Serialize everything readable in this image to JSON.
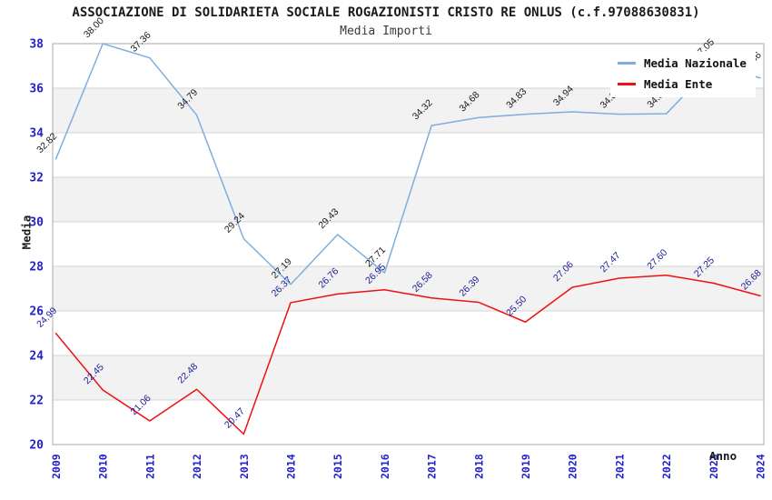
{
  "chart_data": {
    "type": "line",
    "title": "ASSOCIAZIONE DI SOLIDARIETA SOCIALE ROGAZIONISTI CRISTO RE ONLUS (c.f.97088630831)",
    "subtitle": "Media Importi",
    "xlabel": "Anno",
    "ylabel": "Media",
    "categories": [
      "2009",
      "2010",
      "2011",
      "2012",
      "2013",
      "2014",
      "2015",
      "2016",
      "2017",
      "2018",
      "2019",
      "2020",
      "2021",
      "2022",
      "2023",
      "2024"
    ],
    "series": [
      {
        "name": "Media Nazionale",
        "color": "#7faede",
        "label_color": "#1a1a1a",
        "values": [
          32.82,
          38.0,
          37.36,
          34.79,
          29.24,
          27.19,
          29.43,
          27.71,
          34.32,
          34.68,
          34.83,
          34.94,
          34.83,
          34.85,
          37.05,
          36.46
        ]
      },
      {
        "name": "Media Ente",
        "color": "#ee1111",
        "label_color": "#1c1c99",
        "values": [
          24.99,
          22.45,
          21.06,
          22.48,
          20.47,
          26.37,
          26.76,
          26.95,
          26.58,
          26.39,
          25.5,
          27.06,
          27.47,
          27.6,
          27.25,
          26.68
        ]
      }
    ],
    "ylim": [
      20,
      38
    ],
    "ytick_step": 2,
    "yticks": [
      20,
      22,
      24,
      26,
      28,
      30,
      32,
      34,
      36,
      38
    ],
    "legend_position": "top-right",
    "grid": "horizontal",
    "band_color": "#f2f2f2",
    "grid_color": "#d6d6d6",
    "frame_color": "#b8b8b8",
    "tick_label_color": "#2222cc"
  }
}
